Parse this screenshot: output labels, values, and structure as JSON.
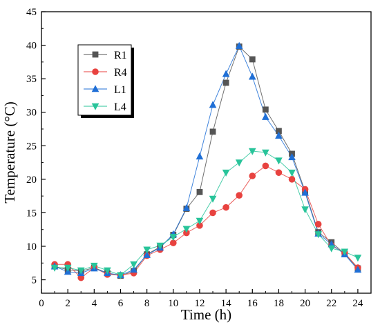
{
  "chart_data": {
    "type": "line",
    "xlabel": "Time (h)",
    "ylabel": "Temperature (°C)",
    "xlim": [
      0,
      25
    ],
    "ylim": [
      3,
      45
    ],
    "xticks": [
      0,
      2,
      4,
      6,
      8,
      10,
      12,
      14,
      16,
      18,
      20,
      22,
      24
    ],
    "yticks": [
      5,
      10,
      15,
      20,
      25,
      30,
      35,
      40,
      45
    ],
    "grid": false,
    "legend_position": "top-left",
    "x": [
      1,
      2,
      3,
      4,
      5,
      6,
      7,
      8,
      9,
      10,
      11,
      12,
      13,
      14,
      15,
      16,
      17,
      18,
      19,
      20,
      21,
      22,
      23,
      24
    ],
    "series": [
      {
        "name": "R1",
        "marker": "square",
        "color": "#555555",
        "values": [
          7.0,
          6.5,
          6.3,
          6.8,
          6.0,
          5.6,
          6.3,
          8.8,
          9.9,
          11.7,
          15.6,
          18.1,
          27.1,
          34.4,
          39.8,
          37.9,
          30.4,
          27.2,
          23.8,
          18.2,
          12.1,
          10.6,
          8.9,
          6.7
        ]
      },
      {
        "name": "R4",
        "marker": "circle",
        "color": "#e8423f",
        "values": [
          7.3,
          7.3,
          5.3,
          6.8,
          5.8,
          5.7,
          6.0,
          8.6,
          9.5,
          10.5,
          12.0,
          13.1,
          15.0,
          15.8,
          17.6,
          20.5,
          22.0,
          21.0,
          20.0,
          18.5,
          13.3,
          10.1,
          9.0,
          6.8
        ]
      },
      {
        "name": "L1",
        "marker": "triangle-up",
        "color": "#1f6fd6",
        "values": [
          7.0,
          6.2,
          6.0,
          6.7,
          6.0,
          5.7,
          6.5,
          8.7,
          9.8,
          11.8,
          15.7,
          23.4,
          31.1,
          35.7,
          39.9,
          35.3,
          29.3,
          26.5,
          23.3,
          18.0,
          11.9,
          10.3,
          8.8,
          6.5
        ]
      },
      {
        "name": "L4",
        "marker": "triangle-down",
        "color": "#28c49a",
        "values": [
          6.8,
          6.8,
          6.4,
          7.1,
          6.4,
          5.7,
          7.3,
          9.5,
          10.1,
          11.4,
          12.6,
          13.8,
          17.1,
          21.0,
          22.5,
          24.2,
          24.0,
          22.8,
          21.0,
          15.5,
          11.8,
          9.7,
          9.2,
          8.3
        ]
      }
    ]
  }
}
